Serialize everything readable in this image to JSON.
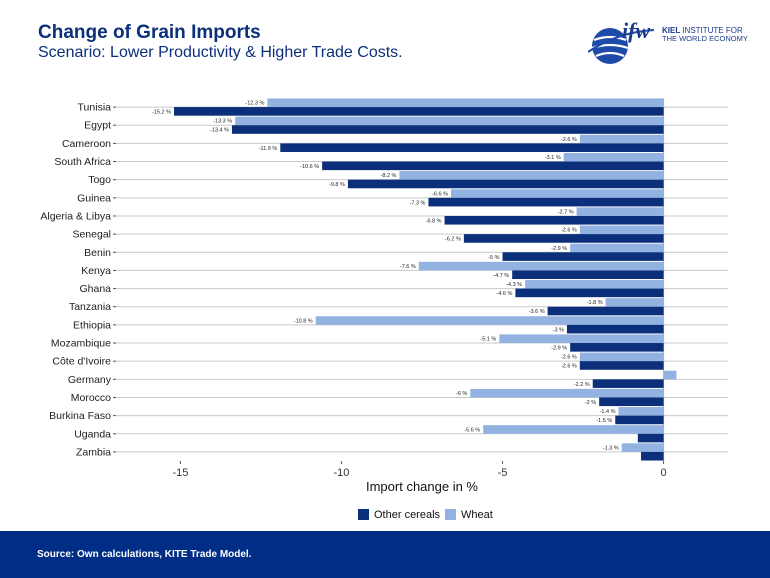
{
  "header": {
    "title": "Change of Grain Imports",
    "subtitle": "Scenario: Lower Productivity & Higher Trade Costs."
  },
  "logo": {
    "mark": "ifw",
    "name": "KIEL",
    "name_rest": "INSTITUTE FOR",
    "line2": "THE WORLD ECONOMY"
  },
  "footer": {
    "source": "Source: Own calculations, KITE Trade Model."
  },
  "colors": {
    "other_cereals": "#0b2f7a",
    "wheat": "#92b2e2",
    "footer_bg": "#002d86"
  },
  "chart_data": {
    "type": "bar",
    "orientation": "horizontal",
    "categories": [
      "Tunisia",
      "Egypt",
      "Cameroon",
      "South Africa",
      "Togo",
      "Guinea",
      "Algeria & Libya",
      "Senegal",
      "Benin",
      "Kenya",
      "Ghana",
      "Tanzania",
      "Ethiopia",
      "Mozambique",
      "Côte d'Ivoire",
      "Germany",
      "Morocco",
      "Burkina Faso",
      "Uganda",
      "Zambia"
    ],
    "series": [
      {
        "name": "Wheat",
        "values": [
          -12.3,
          -13.3,
          -2.6,
          -3.1,
          -8.2,
          -6.6,
          -2.7,
          -2.6,
          -2.9,
          -7.6,
          -4.3,
          -1.8,
          -10.8,
          -5.1,
          -2.6,
          0.4,
          -6,
          -1.4,
          -5.6,
          -1.3
        ],
        "labels": [
          "-12.3 %",
          "-13.3 %",
          "-2.6 %",
          "-3.1 %",
          "-8.2 %",
          "-6.6 %",
          "-2.7 %",
          "-2.6 %",
          "-2.9 %",
          "-7.6 %",
          "-4.3 %",
          "-1.8 %",
          "-10.8 %",
          "-5.1 %",
          "-2.6 %",
          "",
          "-6 %",
          "-1.4 %",
          "-5.6 %",
          "-1.3 %"
        ]
      },
      {
        "name": "Other cereals",
        "values": [
          -15.2,
          -13.4,
          -11.9,
          -10.6,
          -9.8,
          -7.3,
          -6.8,
          -6.2,
          -5,
          -4.7,
          -4.6,
          -3.6,
          -3,
          -2.9,
          -2.6,
          -2.2,
          -2,
          -1.5,
          -0.8,
          -0.7
        ],
        "labels": [
          "-15.2 %",
          "-13.4 %",
          "-11.9 %",
          "-10.6 %",
          "-9.8 %",
          "-7.3 %",
          "-6.8 %",
          "-6.2 %",
          "-5 %",
          "-4.7 %",
          "-4.6 %",
          "-3.6 %",
          "-3 %",
          "-2.9 %",
          "-2.6 %",
          "-2.2 %",
          "-2 %",
          "-1.5 %",
          "",
          ""
        ]
      }
    ],
    "xlabel": "Import change in %",
    "ylabel": "",
    "xlim": [
      -17,
      2
    ],
    "xticks": [
      -15,
      -10,
      -5,
      0
    ],
    "grid": true,
    "legend_position": "bottom",
    "legend": [
      {
        "name": "Other cereals",
        "color": "#0b2f7a"
      },
      {
        "name": "Wheat",
        "color": "#92b2e2"
      }
    ]
  }
}
